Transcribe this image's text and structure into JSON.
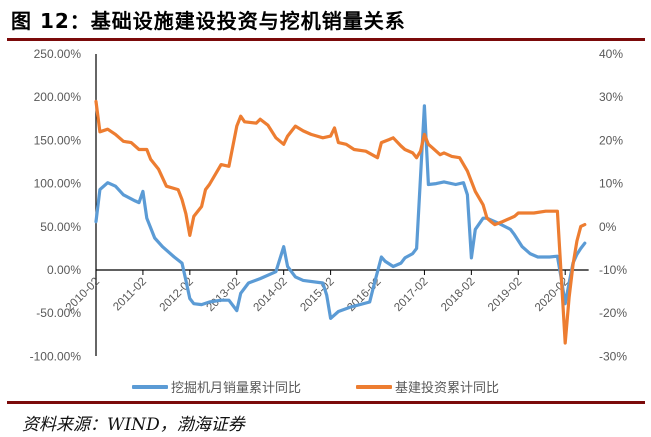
{
  "header": {
    "title": "图 12：基础设施建设投资与挖机销量关系"
  },
  "footer": {
    "source": "资料来源：WIND，渤海证券"
  },
  "legend": [
    {
      "label": "挖掘机月销量累计同比",
      "color": "#5b9bd5"
    },
    {
      "label": "基建投资累计同比",
      "color": "#ed7d31"
    }
  ],
  "chart_data": {
    "type": "line",
    "title": "图 12：基础设施建设投资与挖机销量关系",
    "xlabel": "",
    "ylabel": "",
    "grid": false,
    "legend_position": "bottom",
    "x_tick_labels": [
      "2010-02",
      "2011-02",
      "2012-02",
      "2013-02",
      "2014-02",
      "2015-02",
      "2016-02",
      "2017-02",
      "2018-02",
      "2019-02",
      "2020-02"
    ],
    "y_left": {
      "range": [
        -100,
        250
      ],
      "tick_values": [
        250,
        200,
        150,
        100,
        50,
        0,
        -50,
        -100
      ],
      "tick_labels": [
        "250.00%",
        "200.00%",
        "150.00%",
        "100.00%",
        "50.00%",
        "0.00%",
        "-50.00%",
        "-100.00%"
      ]
    },
    "y_right": {
      "range": [
        -30,
        40
      ],
      "tick_values": [
        40,
        30,
        20,
        10,
        0,
        -10,
        -20,
        -30
      ],
      "tick_labels": [
        "40%",
        "30%",
        "20%",
        "10%",
        "0%",
        "-10%",
        "-20%",
        "-30%"
      ]
    },
    "series": [
      {
        "name": "挖掘机月销量累计同比",
        "axis": "left",
        "color": "#5b9bd5",
        "unit": "%",
        "points": [
          [
            "2010-02",
            56
          ],
          [
            "2010-03",
            93
          ],
          [
            "2010-05",
            101
          ],
          [
            "2010-07",
            97
          ],
          [
            "2010-09",
            87
          ],
          [
            "2010-12",
            80
          ],
          [
            "2011-01",
            78
          ],
          [
            "2011-02",
            91
          ],
          [
            "2011-03",
            60
          ],
          [
            "2011-05",
            37
          ],
          [
            "2011-07",
            27
          ],
          [
            "2011-10",
            15
          ],
          [
            "2011-12",
            8
          ],
          [
            "2012-01",
            -12
          ],
          [
            "2012-02",
            -33
          ],
          [
            "2012-03",
            -39
          ],
          [
            "2012-05",
            -40
          ],
          [
            "2012-07",
            -37
          ],
          [
            "2012-10",
            -35
          ],
          [
            "2012-12",
            -35
          ],
          [
            "2013-02",
            -47
          ],
          [
            "2013-03",
            -27
          ],
          [
            "2013-05",
            -15
          ],
          [
            "2013-08",
            -10
          ],
          [
            "2013-12",
            -2
          ],
          [
            "2014-02",
            27
          ],
          [
            "2014-03",
            4
          ],
          [
            "2014-05",
            -8
          ],
          [
            "2014-07",
            -12
          ],
          [
            "2014-12",
            -15
          ],
          [
            "2015-01",
            -29
          ],
          [
            "2015-02",
            -56
          ],
          [
            "2015-04",
            -48
          ],
          [
            "2015-07",
            -43
          ],
          [
            "2015-12",
            -37
          ],
          [
            "2016-01",
            -19
          ],
          [
            "2016-03",
            15
          ],
          [
            "2016-04",
            10
          ],
          [
            "2016-06",
            4
          ],
          [
            "2016-08",
            8
          ],
          [
            "2016-09",
            14
          ],
          [
            "2016-11",
            19
          ],
          [
            "2016-12",
            25
          ],
          [
            "2017-02",
            190
          ],
          [
            "2017-03",
            99
          ],
          [
            "2017-05",
            100
          ],
          [
            "2017-07",
            102
          ],
          [
            "2017-10",
            99
          ],
          [
            "2017-12",
            101
          ],
          [
            "2018-01",
            87
          ],
          [
            "2018-02",
            14
          ],
          [
            "2018-03",
            47
          ],
          [
            "2018-05",
            60
          ],
          [
            "2018-06",
            60
          ],
          [
            "2018-09",
            54
          ],
          [
            "2018-12",
            47
          ],
          [
            "2019-01",
            41
          ],
          [
            "2019-03",
            27
          ],
          [
            "2019-05",
            19
          ],
          [
            "2019-07",
            15
          ],
          [
            "2019-10",
            15
          ],
          [
            "2019-12",
            16
          ],
          [
            "2020-01",
            -10
          ],
          [
            "2020-02",
            -39
          ],
          [
            "2020-03",
            -15
          ],
          [
            "2020-04",
            8
          ],
          [
            "2020-05",
            18
          ],
          [
            "2020-06",
            25
          ],
          [
            "2020-07",
            31
          ]
        ]
      },
      {
        "name": "基建投资累计同比",
        "axis": "right",
        "color": "#ed7d31",
        "unit": "%",
        "points": [
          [
            "2010-02",
            29
          ],
          [
            "2010-03",
            22
          ],
          [
            "2010-05",
            22.6
          ],
          [
            "2010-07",
            21.4
          ],
          [
            "2010-09",
            19.8
          ],
          [
            "2010-11",
            19.5
          ],
          [
            "2011-01",
            17.9
          ],
          [
            "2011-03",
            17.9
          ],
          [
            "2011-04",
            15.6
          ],
          [
            "2011-06",
            13.3
          ],
          [
            "2011-08",
            9.4
          ],
          [
            "2011-11",
            8.6
          ],
          [
            "2011-12",
            6.3
          ],
          [
            "2012-01",
            3
          ],
          [
            "2012-02",
            -2
          ],
          [
            "2012-03",
            2.4
          ],
          [
            "2012-05",
            4.7
          ],
          [
            "2012-06",
            8.6
          ],
          [
            "2012-07",
            9.8
          ],
          [
            "2012-10",
            14.4
          ],
          [
            "2012-12",
            14
          ],
          [
            "2013-02",
            23.3
          ],
          [
            "2013-03",
            25.6
          ],
          [
            "2013-04",
            24.3
          ],
          [
            "2013-07",
            24
          ],
          [
            "2013-08",
            24.9
          ],
          [
            "2013-10",
            23.5
          ],
          [
            "2013-12",
            20.6
          ],
          [
            "2014-02",
            19.1
          ],
          [
            "2014-03",
            21
          ],
          [
            "2014-05",
            23.3
          ],
          [
            "2014-07",
            22.2
          ],
          [
            "2014-09",
            21.4
          ],
          [
            "2014-12",
            20.6
          ],
          [
            "2015-02",
            21
          ],
          [
            "2015-03",
            22.9
          ],
          [
            "2015-04",
            19.5
          ],
          [
            "2015-06",
            19.1
          ],
          [
            "2015-08",
            17.9
          ],
          [
            "2015-11",
            17.5
          ],
          [
            "2016-02",
            16
          ],
          [
            "2016-03",
            19.5
          ],
          [
            "2016-05",
            20.2
          ],
          [
            "2016-06",
            20.6
          ],
          [
            "2016-08",
            18.7
          ],
          [
            "2016-09",
            17.9
          ],
          [
            "2016-11",
            17.1
          ],
          [
            "2016-12",
            16
          ],
          [
            "2017-01",
            17.5
          ],
          [
            "2017-02",
            21.4
          ],
          [
            "2017-03",
            19.1
          ],
          [
            "2017-04",
            18.3
          ],
          [
            "2017-06",
            16.7
          ],
          [
            "2017-07",
            17.1
          ],
          [
            "2017-09",
            16.3
          ],
          [
            "2017-11",
            16
          ],
          [
            "2018-01",
            12.9
          ],
          [
            "2018-03",
            8.2
          ],
          [
            "2018-05",
            5.1
          ],
          [
            "2018-06",
            2
          ],
          [
            "2018-07",
            1.2
          ],
          [
            "2018-08",
            0.5
          ],
          [
            "2018-10",
            1.2
          ],
          [
            "2019-01",
            2.4
          ],
          [
            "2019-02",
            3.2
          ],
          [
            "2019-06",
            3.2
          ],
          [
            "2019-09",
            3.6
          ],
          [
            "2019-12",
            3.6
          ],
          [
            "2020-02",
            -26.9
          ],
          [
            "2020-03",
            -16.4
          ],
          [
            "2020-04",
            -8.8
          ],
          [
            "2020-05",
            -3.3
          ],
          [
            "2020-06",
            0.1
          ],
          [
            "2020-07",
            0.5
          ]
        ]
      }
    ]
  }
}
